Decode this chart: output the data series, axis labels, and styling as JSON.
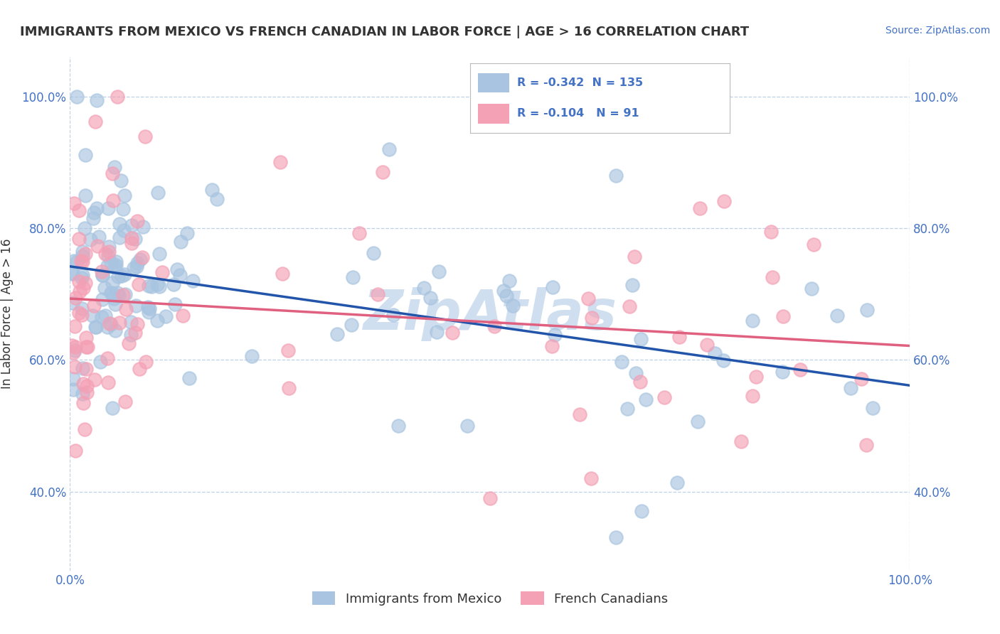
{
  "title": "IMMIGRANTS FROM MEXICO VS FRENCH CANADIAN IN LABOR FORCE | AGE > 16 CORRELATION CHART",
  "source_text": "Source: ZipAtlas.com",
  "ylabel": "In Labor Force | Age > 16",
  "legend_label_1": "Immigrants from Mexico",
  "legend_label_2": "French Canadians",
  "R1": "-0.342",
  "N1": "135",
  "R2": "-0.104",
  "N2": "91",
  "color_blue": "#a8c4e0",
  "color_pink": "#f4a0b5",
  "trendline_blue": "#2255aa",
  "trendline_pink": "#e06080",
  "background_color": "#ffffff",
  "grid_color": "#b8cce4",
  "watermark_color": "#d0dff0",
  "title_color": "#333333",
  "axis_label_color": "#4472c4",
  "x_range": [
    0.0,
    1.0
  ],
  "y_range": [
    0.28,
    1.06
  ],
  "blue_intercept": 0.725,
  "blue_slope": -0.185,
  "pink_intercept": 0.685,
  "pink_slope": -0.075
}
